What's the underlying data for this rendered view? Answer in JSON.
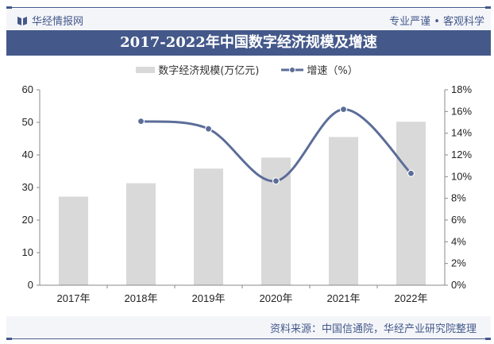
{
  "header": {
    "brand": "华经情报网",
    "slogan": "专业严谨 • 客观科学"
  },
  "title": "2017-2022年中国数字经济规模及增速",
  "legend": {
    "bar_label": "数字经济规模(万亿元)",
    "line_label": "增速（%）"
  },
  "footer": {
    "source": "资料来源：中国信通院，华经产业研究院整理"
  },
  "colors": {
    "brand": "#44598a",
    "bar": "#d9d9d9",
    "line": "#5b6d98"
  },
  "chart_data": {
    "type": "bar+line",
    "title": "2017-2022年中国数字经济规模及增速",
    "categories": [
      "2017年",
      "2018年",
      "2019年",
      "2020年",
      "2021年",
      "2022年"
    ],
    "series": [
      {
        "name": "数字经济规模(万亿元)",
        "type": "bar",
        "axis": "left",
        "values": [
          27.2,
          31.3,
          35.8,
          39.2,
          45.5,
          50.2
        ]
      },
      {
        "name": "增速（%）",
        "type": "line",
        "axis": "right",
        "values": [
          null,
          15.1,
          14.4,
          9.6,
          16.2,
          10.3
        ]
      }
    ],
    "y_left": {
      "ylim": [
        0,
        60
      ],
      "ticks": [
        "0",
        "10",
        "20",
        "30",
        "40",
        "50",
        "60"
      ]
    },
    "y_right": {
      "ylim": [
        0,
        18
      ],
      "ticks": [
        "0%",
        "2%",
        "4%",
        "6%",
        "8%",
        "10%",
        "12%",
        "14%",
        "16%",
        "18%"
      ]
    },
    "xlabel": "",
    "ylabel": "",
    "grid": false,
    "legend_position": "top"
  }
}
